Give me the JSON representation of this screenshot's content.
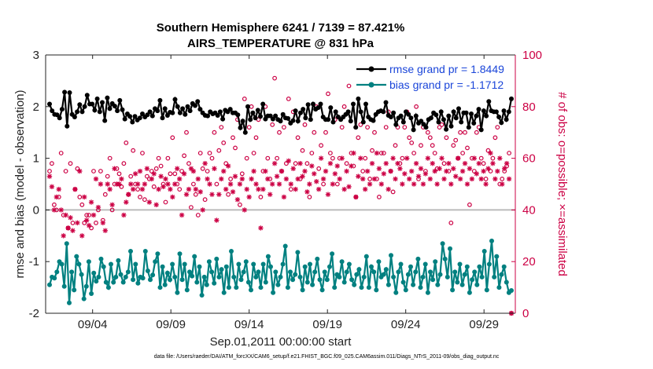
{
  "chart_data": {
    "type": "line",
    "title": "Southern Hemisphere 6241 / 7139 = 87.421%",
    "subtitle": "AIRS_TEMPERATURE @ 831 hPa",
    "xlabel": "Sep.01,2011 00:00:00 start",
    "ylabel_left": "rmse and bias (model - observation)",
    "ylabel_right": "# of obs: o=possible; ×=assimilated",
    "xtick_labels": [
      "09/04",
      "09/09",
      "09/14",
      "09/19",
      "09/24",
      "09/29"
    ],
    "xtick_days": [
      4,
      9,
      14,
      19,
      24,
      29
    ],
    "xlim_days": [
      1,
      31
    ],
    "ylim_left": [
      -2,
      3
    ],
    "yticks_left": [
      "-2",
      "-1",
      "0",
      "1",
      "2",
      "3"
    ],
    "ylim_right": [
      0,
      100
    ],
    "yticks_right": [
      "0",
      "20",
      "40",
      "60",
      "80",
      "100"
    ],
    "legend_position": "top-right",
    "colors": {
      "rmse": "#000000",
      "bias": "#008080",
      "obs": "#cc0044",
      "legend_text": "#1a45d9"
    },
    "series": [
      {
        "name": "rmse grand pr = 1.8449",
        "axis": "left",
        "values": [
          2.05,
          1.92,
          1.85,
          1.84,
          1.78,
          1.95,
          2.28,
          1.62,
          2.27,
          1.85,
          1.8,
          1.9,
          2.04,
          1.9,
          2.0,
          2.22,
          2.05,
          2.05,
          1.93,
          2.15,
          1.9,
          2.08,
          1.73,
          2.17,
          1.96,
          2.06,
          2.01,
          1.92,
          2.12,
          1.94,
          1.76,
          1.86,
          1.81,
          1.7,
          1.81,
          1.74,
          1.78,
          1.86,
          1.8,
          1.84,
          1.9,
          1.82,
          1.96,
          1.92,
          2.12,
          1.78,
          1.96,
          1.83,
          1.89,
          1.88,
          2.14,
          2.0,
          1.88,
          1.96,
          1.85,
          2.0,
          1.92,
          2.06,
          2.02,
          2.1,
          1.95,
          1.88,
          1.83,
          1.82,
          1.9,
          1.86,
          1.88,
          1.83,
          1.9,
          1.76,
          1.93,
          1.9,
          1.95,
          1.88,
          1.88,
          1.84,
          1.59,
          1.72,
          1.5,
          2.0,
          1.75,
          1.88,
          1.78,
          1.93,
          1.81,
          2.05,
          1.76,
          1.82,
          1.82,
          1.76,
          1.82,
          1.75,
          1.72,
          1.85,
          1.78,
          1.77,
          1.68,
          1.73,
          1.92,
          1.72,
          1.88,
          1.95,
          1.78,
          2.04,
          1.75,
          2.05,
          1.95,
          1.98,
          2.05,
          1.8,
          1.75,
          1.75,
          1.98,
          1.7,
          1.9,
          1.8,
          1.75,
          1.8,
          1.85,
          1.9,
          1.72,
          2.05,
          1.6,
          2.15,
          1.9,
          1.7,
          2.05,
          1.8,
          1.75,
          1.73,
          1.85,
          1.9,
          1.92,
          1.9,
          2.08,
          1.83,
          1.8,
          1.88,
          1.65,
          1.78,
          1.82,
          1.7,
          1.9,
          1.85,
          1.78,
          1.55,
          1.82,
          1.68,
          1.72,
          1.66,
          1.6,
          1.75,
          1.78,
          1.88,
          1.84,
          1.7,
          1.9,
          1.75,
          1.56,
          1.82,
          1.62,
          1.9,
          1.78,
          1.96,
          1.7,
          1.88,
          1.88,
          1.6,
          1.86,
          1.68,
          1.82,
          1.95,
          1.55,
          1.92,
          1.82,
          2.1,
          1.92,
          1.9,
          1.9,
          1.8,
          1.69,
          1.92,
          1.75,
          1.9,
          2.15
        ]
      },
      {
        "name": "bias grand pr = -1.1712",
        "axis": "left",
        "values": [
          -1.45,
          -1.3,
          -1.32,
          -1.2,
          -1.0,
          -1.05,
          -1.48,
          -0.65,
          -1.8,
          -1.2,
          -1.55,
          -0.9,
          -1.05,
          -1.25,
          -1.72,
          -1.48,
          -1.0,
          -1.62,
          -1.22,
          -1.38,
          -1.3,
          -0.95,
          -1.1,
          -1.4,
          -1.5,
          -1.05,
          -1.4,
          -1.3,
          -0.98,
          -1.25,
          -1.4,
          -1.3,
          -1.2,
          -0.8,
          -1.35,
          -1.05,
          -1.42,
          -1.3,
          -1.32,
          -0.8,
          -1.18,
          -1.35,
          -1.26,
          -1.0,
          -0.85,
          -1.5,
          -1.1,
          -1.45,
          -1.22,
          -1.35,
          -1.05,
          -1.3,
          -1.6,
          -0.85,
          -1.35,
          -1.05,
          -1.55,
          -1.2,
          -1.28,
          -0.9,
          -1.4,
          -1.1,
          -1.65,
          -1.3,
          -1.45,
          -1.0,
          -1.2,
          -1.42,
          -0.95,
          -1.3,
          -1.15,
          -1.6,
          -1.1,
          -1.5,
          -0.8,
          -1.3,
          -1.5,
          -1.05,
          -1.35,
          -1.2,
          -1.0,
          -1.4,
          -1.55,
          -1.05,
          -1.3,
          -1.2,
          -1.5,
          -1.05,
          -1.4,
          -0.9,
          -1.1,
          -1.6,
          -1.2,
          -1.45,
          -1.3,
          -1.05,
          -0.7,
          -1.5,
          -1.2,
          -1.35,
          -1.25,
          -0.82,
          -1.3,
          -1.55,
          -1.1,
          -1.4,
          -1.05,
          -1.45,
          -1.2,
          -0.95,
          -1.35,
          -1.55,
          -1.2,
          -1.35,
          -1.1,
          -0.85,
          -1.5,
          -1.25,
          -1.3,
          -1.0,
          -1.4,
          -1.2,
          -1.05,
          -1.35,
          -1.45,
          -1.25,
          -1.15,
          -1.5,
          -1.3,
          -0.9,
          -1.5,
          -1.1,
          -1.2,
          -1.55,
          -1.0,
          -1.3,
          -1.25,
          -1.15,
          -1.45,
          -0.88,
          -1.3,
          -1.6,
          -1.2,
          -1.05,
          -1.4,
          -1.55,
          -1.25,
          -1.1,
          -1.45,
          -1.2,
          -0.95,
          -1.5,
          -1.3,
          -1.05,
          -1.6,
          -1.2,
          -1.35,
          -1.0,
          -1.45,
          -1.25,
          -0.65,
          -0.95,
          -1.3,
          -0.75,
          -1.55,
          -1.2,
          -1.4,
          -1.05,
          -1.45,
          -1.25,
          -1.1,
          -1.6,
          -1.35,
          -1.2,
          -1.45,
          -1.1,
          -1.3,
          -0.8,
          -1.55,
          -1.05,
          -0.6,
          -1.3,
          -0.9,
          -1.5,
          -1.25,
          -1.1,
          -1.4,
          -1.6,
          -1.56
        ]
      },
      {
        "name": "possible",
        "axis": "right",
        "marker": "o",
        "values": [
          55,
          58,
          42,
          40,
          45,
          62,
          38,
          55,
          33,
          58,
          35,
          48,
          56,
          45,
          42,
          35,
          38,
          38,
          33,
          55,
          35,
          40,
          55,
          36,
          46,
          53,
          60,
          40,
          50,
          56,
          54,
          49,
          58,
          66,
          46,
          53,
          63,
          50,
          48,
          45,
          62,
          44,
          53,
          52,
          55,
          49,
          56,
          60,
          57,
          50,
          43,
          60,
          54,
          68,
          54,
          50,
          48,
          55,
          61,
          70,
          58,
          41,
          50,
          46,
          38,
          62,
          56,
          44,
          55,
          62,
          60,
          70,
          50,
          63,
          72,
          66,
          58,
          46,
          52,
          68,
          64,
          75,
          42,
          54,
          83,
          60,
          72,
          80,
          62,
          68,
          75,
          45,
          55,
          80,
          60,
          52,
          73,
          91,
          60,
          70,
          55,
          72,
          58,
          83,
          48,
          78,
          58,
          68,
          52,
          63,
          73,
          58,
          45,
          62,
          70,
          80,
          56,
          65,
          50,
          70,
          85,
          62,
          60,
          75,
          50,
          60,
          72,
          80,
          58,
          88,
          62,
          57,
          45,
          68,
          73,
          55,
          60,
          72,
          52,
          63,
          70,
          52,
          45,
          62,
          62,
          72,
          78,
          55,
          47,
          65,
          72,
          58,
          60,
          72,
          78,
          68,
          66,
          62,
          80,
          52,
          65,
          72,
          55,
          70,
          68,
          65,
          62,
          56,
          72,
          73,
          58,
          68,
          55,
          35,
          65,
          67,
          60,
          70,
          62,
          70,
          64,
          42,
          60,
          55,
          70,
          72,
          60,
          58,
          52,
          63,
          55,
          60,
          68,
          72,
          50,
          52,
          55,
          57,
          62,
          0
        ]
      },
      {
        "name": "assimilated",
        "axis": "right",
        "marker": "x",
        "values": [
          53,
          49,
          40,
          45,
          48,
          40,
          30,
          38,
          33,
          37,
          32,
          48,
          35,
          55,
          30,
          45,
          36,
          34,
          43,
          38,
          52,
          41,
          50,
          35,
          32,
          50,
          48,
          42,
          56,
          50,
          50,
          52,
          38,
          43,
          46,
          50,
          48,
          54,
          50,
          55,
          48,
          50,
          56,
          43,
          52,
          54,
          42,
          48,
          53,
          49,
          52,
          50,
          48,
          45,
          50,
          56,
          52,
          38,
          54,
          46,
          48,
          56,
          55,
          48,
          52,
          47,
          40,
          58,
          52,
          50,
          46,
          56,
          36,
          46,
          52,
          55,
          48,
          57,
          50,
          47,
          53,
          44,
          50,
          52,
          40,
          48,
          45,
          52,
          55,
          50,
          48,
          33,
          48,
          55,
          52,
          46,
          50,
          58,
          53,
          50,
          55,
          45,
          52,
          59,
          50,
          56,
          48,
          52,
          58,
          53,
          55,
          47,
          50,
          57,
          54,
          51,
          48,
          60,
          52,
          55,
          46,
          58,
          50,
          54,
          57,
          52,
          60,
          48,
          55,
          49,
          57,
          62,
          45,
          53,
          60,
          52,
          48,
          55,
          50,
          58,
          52,
          62,
          56,
          50,
          54,
          58,
          48,
          55,
          60,
          52,
          58,
          56,
          50,
          54,
          60,
          52,
          55,
          50,
          58,
          53,
          56,
          50,
          54,
          60,
          52,
          58,
          55,
          50,
          56,
          60,
          52,
          55,
          58,
          50,
          56,
          53,
          60,
          52,
          55,
          58,
          50,
          56,
          52,
          60,
          54,
          58,
          52,
          55,
          50,
          56,
          62,
          58,
          52,
          55,
          60,
          50,
          56,
          58,
          52,
          0
        ]
      }
    ]
  },
  "footer_text": "data file: /Users/raeder/DAI/ATM_forcXX/CAM6_setup/f.e21.FHIST_BGC.f09_025.CAM6assim.011/Diags_NTrS_2011-09/obs_diag_output.nc"
}
